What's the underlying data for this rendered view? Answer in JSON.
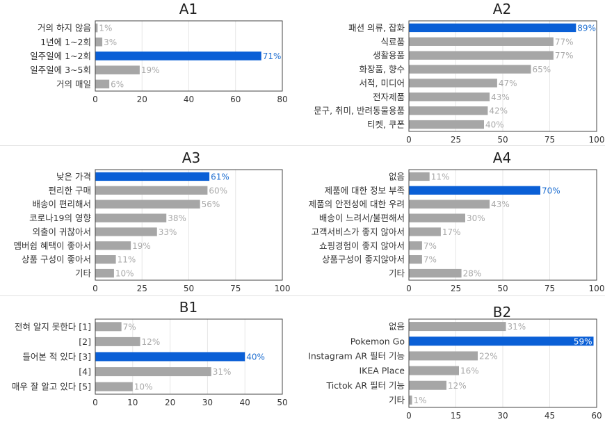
{
  "charts": [
    {
      "title": "A1",
      "type": "bar",
      "orientation": "horizontal",
      "categories": [
        "거의 하지 않음",
        "1년에 1~2회",
        "일주일에 1~2회",
        "일주일에 3~5회",
        "거의 매일"
      ],
      "values": [
        1,
        3,
        71,
        19,
        6
      ],
      "labels": [
        "1%",
        "3%",
        "71%",
        "19%",
        "6%"
      ],
      "highlight_index": 2,
      "xlim": [
        0,
        80
      ],
      "xticks": [
        0,
        20,
        40,
        60,
        80
      ]
    },
    {
      "title": "A2",
      "type": "bar",
      "orientation": "horizontal",
      "categories": [
        "패션 의류, 잡화",
        "식료품",
        "생활용품",
        "화장품, 향수",
        "서적, 미디어",
        "전자제품",
        "문구, 취미, 반려동물용품",
        "티켓, 쿠폰"
      ],
      "values": [
        89,
        77,
        77,
        65,
        47,
        43,
        42,
        40
      ],
      "labels": [
        "89%",
        "77%",
        "77%",
        "65%",
        "47%",
        "43%",
        "42%",
        "40%"
      ],
      "highlight_index": 0,
      "xlim": [
        0,
        100
      ],
      "xticks": [
        0,
        25,
        50,
        75,
        100
      ]
    },
    {
      "title": "A3",
      "type": "bar",
      "orientation": "horizontal",
      "categories": [
        "낮은 가격",
        "편리한 구매",
        "배송이 편리해서",
        "코로나19의 영향",
        "외출이 귀찮아서",
        "멤버쉽 혜택이 좋아서",
        "상품 구성이 좋아서",
        "기타"
      ],
      "values": [
        61,
        60,
        56,
        38,
        33,
        19,
        11,
        10
      ],
      "labels": [
        "61%",
        "60%",
        "56%",
        "38%",
        "33%",
        "19%",
        "11%",
        "10%"
      ],
      "highlight_index": 0,
      "xlim": [
        0,
        100
      ],
      "xticks": [
        0,
        25,
        50,
        75,
        100
      ]
    },
    {
      "title": "A4",
      "type": "bar",
      "orientation": "horizontal",
      "categories": [
        "없음",
        "제품에 대한 정보 부족",
        "제품의 안전성에 대한 우려",
        "배송이 느려서/불편해서",
        "고객서비스가 좋지 않아서",
        "쇼핑경험이 좋지 않아서",
        "상품구성이 좋지않아서",
        "기타"
      ],
      "values": [
        11,
        70,
        43,
        30,
        17,
        7,
        7,
        28
      ],
      "labels": [
        "11%",
        "70%",
        "43%",
        "30%",
        "17%",
        "7%",
        "7%",
        "28%"
      ],
      "highlight_index": 1,
      "xlim": [
        0,
        100
      ],
      "xticks": [
        0,
        25,
        50,
        75,
        100
      ]
    },
    {
      "title": "B1",
      "type": "bar",
      "orientation": "horizontal",
      "categories": [
        "전혀 알지 못한다 [1]",
        "[2]",
        "들어본 적 있다 [3]",
        "[4]",
        "매우 잘 알고 있다 [5]"
      ],
      "values": [
        7,
        12,
        40,
        31,
        10
      ],
      "labels": [
        "7%",
        "12%",
        "40%",
        "31%",
        "10%"
      ],
      "highlight_index": 2,
      "xlim": [
        0,
        50
      ],
      "xticks": [
        0,
        10,
        20,
        30,
        40,
        50
      ]
    },
    {
      "title": "B2",
      "type": "bar",
      "orientation": "horizontal",
      "categories": [
        "없음",
        "Pokemon Go",
        "Instagram AR 필터 기능",
        "IKEA Place",
        "Tictok AR 필터 기능",
        "기타"
      ],
      "values": [
        31,
        59,
        22,
        16,
        12,
        1
      ],
      "labels": [
        "31%",
        "59%",
        "22%",
        "16%",
        "12%",
        "1%"
      ],
      "highlight_index": 1,
      "xlim": [
        0,
        60
      ],
      "xticks": [
        0,
        15,
        30,
        45,
        60
      ]
    }
  ],
  "colors": {
    "highlight_bar": "#0a5fd6",
    "normal_bar": "#a6a6a6",
    "highlight_label": "#1f6fd1",
    "normal_label": "#aaaaaa",
    "inside_label": "#ffffff",
    "title": "#222222",
    "axis_text": "#333333",
    "grid": "#e6e6e6",
    "frame": "#444444"
  }
}
